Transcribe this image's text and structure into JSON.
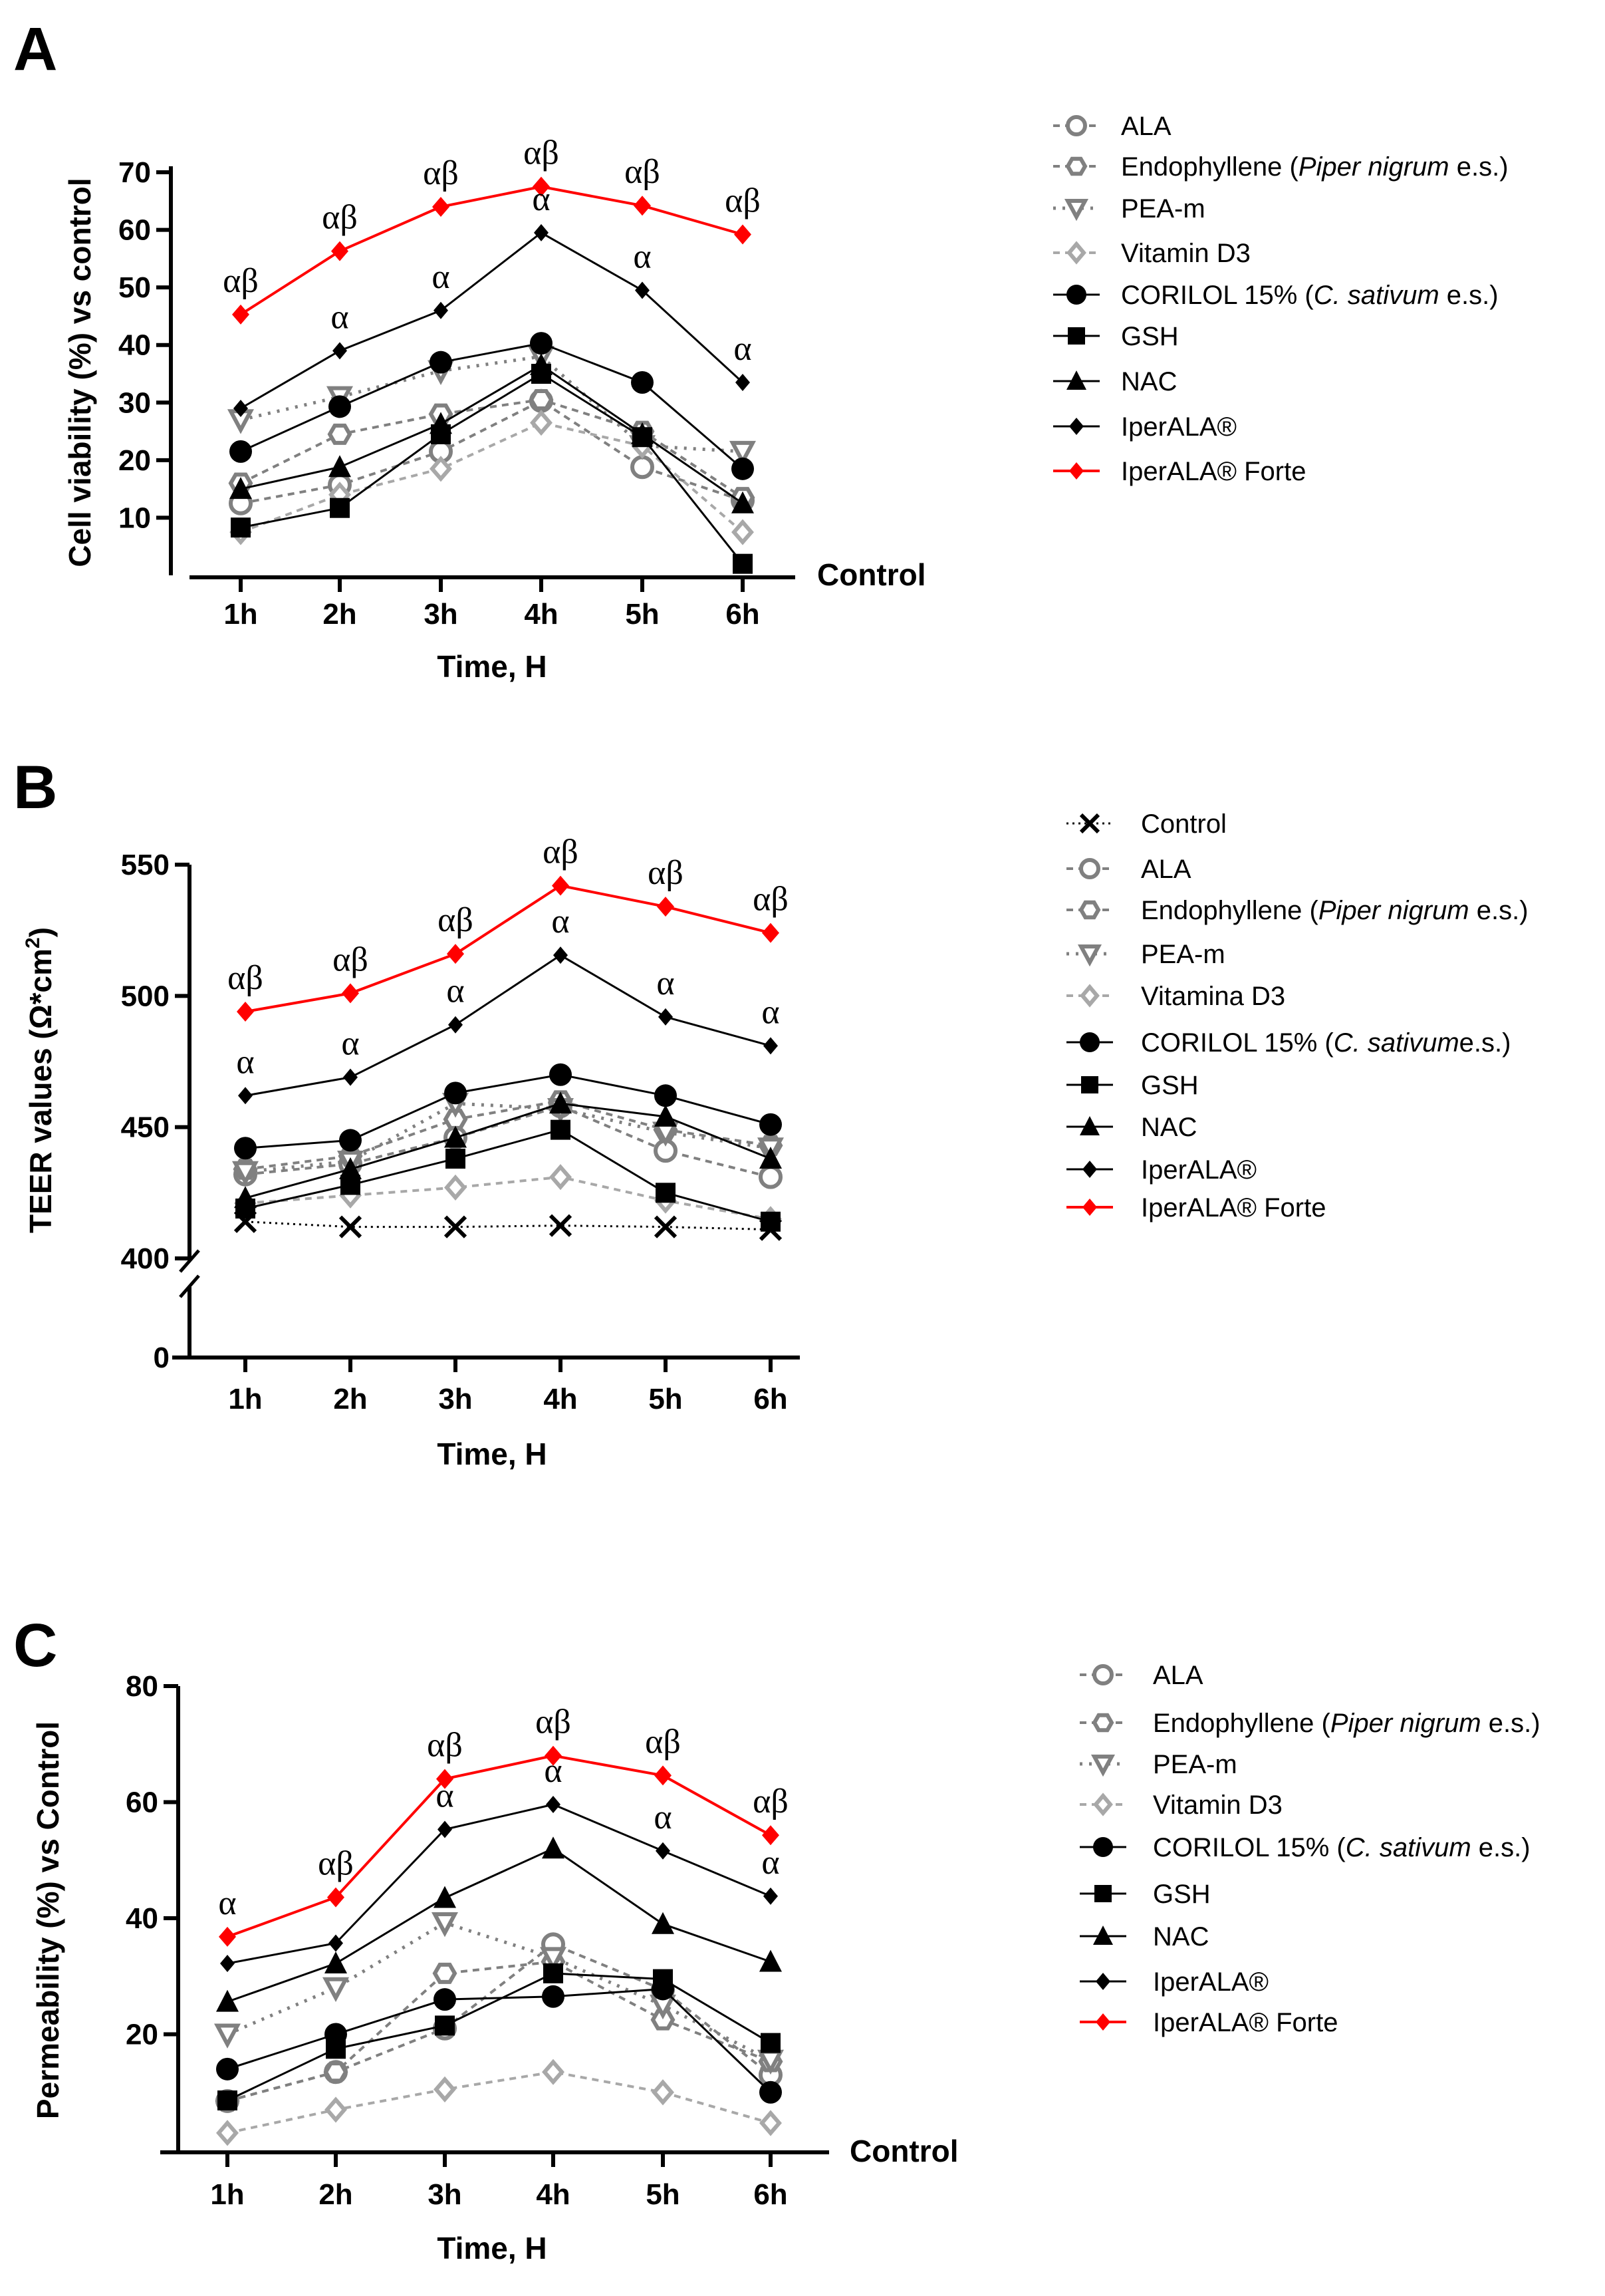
{
  "chart_data": [
    {
      "panel": "A",
      "type": "line",
      "xlabel": "Time, H",
      "ylabel": "Cell viability (%) vs control",
      "baseline_label": "Control",
      "categories": [
        "1h",
        "2h",
        "3h",
        "4h",
        "5h",
        "6h"
      ],
      "ylim": [
        0,
        70
      ],
      "yticks": [
        10,
        20,
        30,
        40,
        50,
        60,
        70
      ],
      "series": [
        {
          "name": "ALA",
          "label_parts": [
            "ALA"
          ],
          "style": "ala",
          "values": [
            12.5,
            15.7,
            21.5,
            30.3,
            18.8,
            13
          ]
        },
        {
          "name": "Endophyllene (Piper nigrum e.s.)",
          "label_parts": [
            "Endophyllene (",
            "Piper nigrum",
            " e.s.)"
          ],
          "style": "endo",
          "values": [
            16,
            24.5,
            28,
            30.5,
            25,
            13.5
          ]
        },
        {
          "name": "PEA-m",
          "label_parts": [
            "PEA-m"
          ],
          "style": "pea",
          "values": [
            27,
            31,
            35.5,
            38,
            22.5,
            21.5
          ]
        },
        {
          "name": "Vitamin D3",
          "label_parts": [
            "Vitamin D3"
          ],
          "style": "vitd",
          "values": [
            7.5,
            14,
            18.5,
            26.5,
            22.5,
            7.5
          ]
        },
        {
          "name": "CORILOL 15% (C. sativum e.s.)",
          "label_parts": [
            "CORILOL 15% (",
            "C. sativum",
            " e.s.)"
          ],
          "style": "corilol",
          "values": [
            21.5,
            29.3,
            37,
            40.3,
            33.5,
            18.5
          ]
        },
        {
          "name": "GSH",
          "label_parts": [
            "GSH"
          ],
          "style": "gsh",
          "values": [
            8.3,
            11.7,
            24.5,
            35,
            24,
            2
          ]
        },
        {
          "name": "NAC",
          "label_parts": [
            "NAC"
          ],
          "style": "nac",
          "values": [
            15,
            18.8,
            26.3,
            36.5,
            24.5,
            12.5
          ]
        },
        {
          "name": "IperALA®",
          "label_parts": [
            "IperALA®"
          ],
          "style": "iper",
          "values": [
            29,
            39,
            46,
            59.5,
            49.5,
            33.5
          ]
        },
        {
          "name": "IperALA® Forte",
          "label_parts": [
            "IperALA® Forte"
          ],
          "style": "forte",
          "values": [
            45.3,
            56.3,
            64,
            67.5,
            64.2,
            59.2
          ]
        }
      ],
      "annotations": [
        {
          "series": "IperALA® Forte",
          "labels": [
            "αβ",
            "αβ",
            "αβ",
            "αβ",
            "αβ",
            "αβ"
          ]
        },
        {
          "series": "IperALA®",
          "labels": [
            "",
            "α",
            "α",
            "α",
            "α",
            "α"
          ]
        }
      ]
    },
    {
      "panel": "B",
      "type": "line",
      "xlabel": "Time, H",
      "ylabel": "TEER values (Ω*cm",
      "ylabel_sup": "2",
      "ylabel_end": ")",
      "categories": [
        "1h",
        "2h",
        "3h",
        "4h",
        "5h",
        "6h"
      ],
      "ylim": [
        0,
        550
      ],
      "axis_break": [
        0,
        400
      ],
      "yticks": [
        0,
        400,
        450,
        500,
        550
      ],
      "series": [
        {
          "name": "Control",
          "label_parts": [
            "Control"
          ],
          "style": "control",
          "values": [
            414,
            412,
            412,
            412.5,
            412,
            411
          ]
        },
        {
          "name": "ALA",
          "label_parts": [
            "ALA"
          ],
          "style": "ala",
          "values": [
            432,
            436,
            446,
            458,
            441,
            431
          ]
        },
        {
          "name": "Endophyllene (Piper nigrum e.s.)",
          "label_parts": [
            "Endophyllene (",
            "Piper nigrum",
            " e.s.)"
          ],
          "style": "endo",
          "values": [
            434,
            439,
            453,
            460,
            449,
            443
          ]
        },
        {
          "name": "PEA-m",
          "label_parts": [
            "PEA-m"
          ],
          "style": "pea",
          "values": [
            433,
            437,
            459,
            457,
            448,
            442
          ]
        },
        {
          "name": "Vitamina D3",
          "label_parts": [
            "Vitamina D3"
          ],
          "style": "vitd",
          "values": [
            421,
            424,
            427,
            431,
            422,
            415
          ]
        },
        {
          "name": "CORILOL 15% (C. sativume.s.)",
          "label_parts": [
            "CORILOL 15% (",
            "C. sativum",
            "e.s.)"
          ],
          "style": "corilol",
          "values": [
            442,
            445,
            463,
            470,
            462,
            451
          ]
        },
        {
          "name": "GSH",
          "label_parts": [
            "GSH"
          ],
          "style": "gsh",
          "values": [
            419,
            428,
            438,
            449,
            425,
            414
          ]
        },
        {
          "name": "NAC",
          "label_parts": [
            "NAC"
          ],
          "style": "nac",
          "values": [
            423,
            434,
            446,
            459,
            454,
            438
          ]
        },
        {
          "name": "IperALA®",
          "label_parts": [
            "IperALA®"
          ],
          "style": "iper",
          "values": [
            462,
            469,
            489,
            515.5,
            492,
            481
          ]
        },
        {
          "name": "IperALA® Forte",
          "label_parts": [
            "IperALA® Forte"
          ],
          "style": "forte",
          "values": [
            494,
            501,
            516,
            542,
            534,
            524
          ]
        }
      ],
      "annotations": [
        {
          "series": "IperALA® Forte",
          "labels": [
            "αβ",
            "αβ",
            "αβ",
            "αβ",
            "αβ",
            "αβ"
          ]
        },
        {
          "series": "IperALA®",
          "labels": [
            "α",
            "α",
            "α",
            "α",
            "α",
            "α"
          ]
        }
      ]
    },
    {
      "panel": "C",
      "type": "line",
      "xlabel": "Time, H",
      "ylabel": "Permeability (%) vs Control",
      "baseline_label": "Control",
      "categories": [
        "1h",
        "2h",
        "3h",
        "4h",
        "5h",
        "6h"
      ],
      "ylim": [
        0,
        80
      ],
      "yticks": [
        20,
        40,
        60,
        80
      ],
      "series": [
        {
          "name": "ALA",
          "label_parts": [
            "ALA"
          ],
          "style": "ala",
          "values": [
            8.5,
            13.5,
            21,
            35.5,
            27.7,
            13
          ]
        },
        {
          "name": "Endophyllene (Piper nigrum e.s.)",
          "label_parts": [
            "Endophyllene (",
            "Piper nigrum",
            " e.s.)"
          ],
          "style": "endo",
          "values": [
            8.5,
            13.5,
            30.5,
            32.5,
            22.5,
            15.3
          ]
        },
        {
          "name": "PEA-m",
          "label_parts": [
            "PEA-m"
          ],
          "style": "pea",
          "values": [
            20,
            28,
            39.2,
            33.2,
            25,
            15.5
          ]
        },
        {
          "name": "Vitamin D3",
          "label_parts": [
            "Vitamin D3"
          ],
          "style": "vitd",
          "values": [
            3,
            7,
            10.5,
            13.5,
            10,
            4.7
          ]
        },
        {
          "name": "CORILOL 15% (C. sativum e.s.)",
          "label_parts": [
            "CORILOL 15% (",
            "C. sativum",
            " e.s.)"
          ],
          "style": "corilol",
          "values": [
            14,
            20,
            26,
            26.5,
            27.8,
            10
          ]
        },
        {
          "name": "GSH",
          "label_parts": [
            "GSH"
          ],
          "style": "gsh",
          "values": [
            8.6,
            17.5,
            21.5,
            30.5,
            29.5,
            18.5
          ]
        },
        {
          "name": "NAC",
          "label_parts": [
            "NAC"
          ],
          "style": "nac",
          "values": [
            25.6,
            32.2,
            43.5,
            52,
            39,
            32.5
          ]
        },
        {
          "name": "IperALA®",
          "label_parts": [
            "IperALA®"
          ],
          "style": "iper",
          "values": [
            32.2,
            35.7,
            55.3,
            59.6,
            51.6,
            43.8
          ]
        },
        {
          "name": "IperALA® Forte",
          "label_parts": [
            "IperALA® Forte"
          ],
          "style": "forte",
          "values": [
            36.8,
            43.6,
            64,
            68,
            64.6,
            54.3
          ]
        }
      ],
      "annotations": [
        {
          "series": "IperALA® Forte",
          "labels": [
            "α",
            "αβ",
            "αβ",
            "αβ",
            "αβ",
            "αβ"
          ]
        },
        {
          "series": "IperALA®",
          "labels": [
            "",
            "",
            "α",
            "α",
            "α",
            "α"
          ]
        }
      ]
    }
  ],
  "colors": {
    "forte": "#ff0000",
    "black": "#000000",
    "gray": "#808080",
    "lightgray": "#a8a8a8"
  }
}
